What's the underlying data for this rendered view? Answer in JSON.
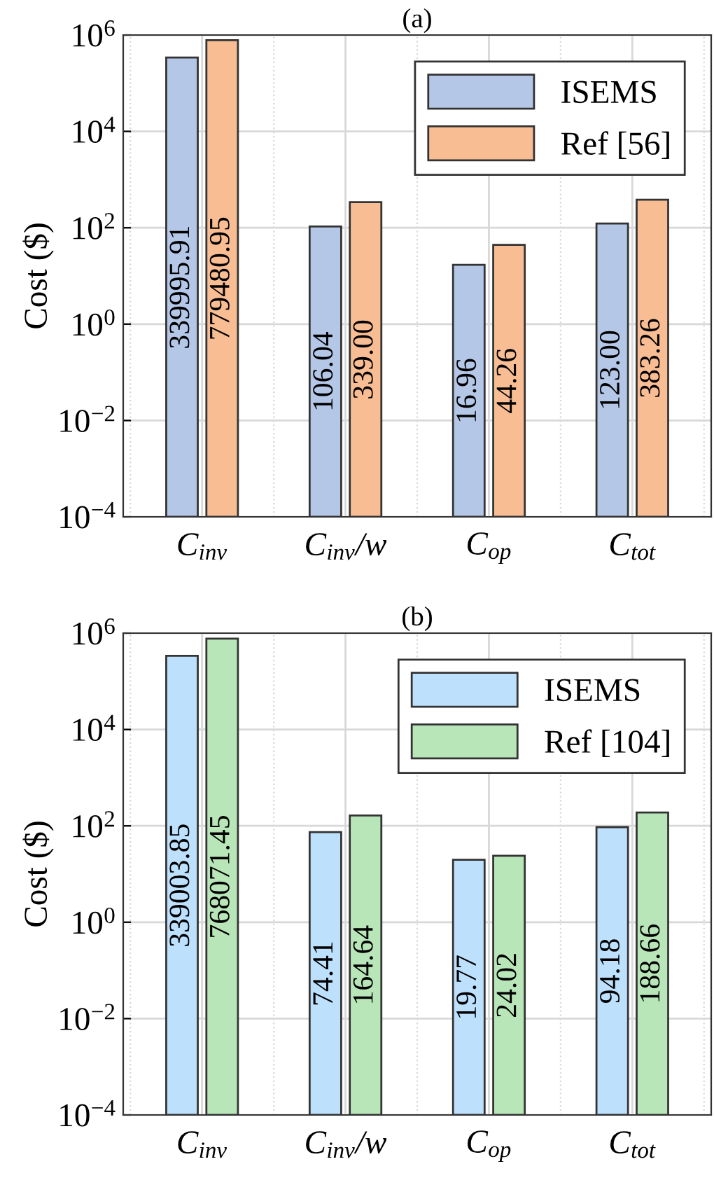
{
  "chart_data": [
    {
      "type": "bar",
      "title": "(a)",
      "ylabel": "Cost ($)",
      "categories": [
        "C$_{inv}$",
        "C$_{inv}$/w",
        "C$_{op}$",
        "C$_{tot}$"
      ],
      "series": [
        {
          "name": "ISEMS",
          "color": "#b4c7e7",
          "values": [
            339995.91,
            106.04,
            16.96,
            123.0
          ],
          "value_labels": [
            "339995.91",
            "106.04",
            "16.96",
            "123.00"
          ]
        },
        {
          "name": "Ref [56]",
          "color": "#f8bd93",
          "values": [
            779480.95,
            339.0,
            44.26,
            383.26
          ],
          "value_labels": [
            "779480.95",
            "339.00",
            "44.26",
            "383.26"
          ]
        }
      ],
      "log": true,
      "ylim": [
        0.0001,
        1000000
      ],
      "yticks": [
        {
          "value": 0.0001,
          "label": "10$^{−4}$"
        },
        {
          "value": 0.01,
          "label": "10$^{−2}$"
        },
        {
          "value": 1,
          "label": "10$^{0}$"
        },
        {
          "value": 100,
          "label": "10$^{2}$"
        },
        {
          "value": 10000,
          "label": "10$^{4}$"
        },
        {
          "value": 1000000,
          "label": "10$^{6}$"
        }
      ],
      "grid": true,
      "legend": "top right"
    },
    {
      "type": "bar",
      "title": "(b)",
      "ylabel": "Cost ($)",
      "categories": [
        "C$_{inv}$",
        "C$_{inv}$/w",
        "C$_{op}$",
        "C$_{tot}$"
      ],
      "series": [
        {
          "name": "ISEMS",
          "color": "#bde0fd",
          "values": [
            339003.85,
            74.41,
            19.77,
            94.18
          ],
          "value_labels": [
            "339003.85",
            "74.41",
            "19.77",
            "94.18"
          ]
        },
        {
          "name": "Ref [104]",
          "color": "#b9e6b9",
          "values": [
            768071.45,
            164.64,
            24.02,
            188.66
          ],
          "value_labels": [
            "768071.45",
            "164.64",
            "24.02",
            "188.66"
          ]
        }
      ],
      "log": true,
      "ylim": [
        0.0001,
        1000000
      ],
      "yticks": [
        {
          "value": 0.0001,
          "label": "10$^{−4}$"
        },
        {
          "value": 0.01,
          "label": "10$^{−2}$"
        },
        {
          "value": 1,
          "label": "10$^{0}$"
        },
        {
          "value": 100,
          "label": "10$^{2}$"
        },
        {
          "value": 10000,
          "label": "10$^{4}$"
        },
        {
          "value": 1000000,
          "label": "10$^{6}$"
        }
      ],
      "grid": true,
      "legend": "top right"
    }
  ]
}
